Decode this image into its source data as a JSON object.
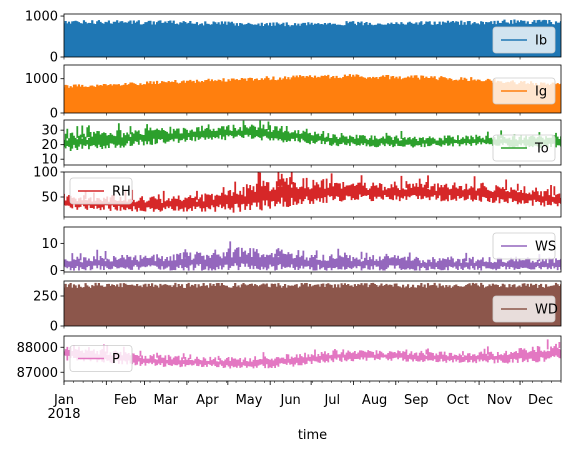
{
  "chart_data": {
    "type": "line",
    "xlabel": "time",
    "x_ticks": [
      "Jan",
      "Feb",
      "Mar",
      "Apr",
      "May",
      "Jun",
      "Jul",
      "Aug",
      "Sep",
      "Oct",
      "Nov",
      "Dec"
    ],
    "x_year_label": "2018",
    "x_range": [
      "2018-01-01",
      "2018-12-31"
    ],
    "legend_position": "right",
    "panels": [
      {
        "name": "Ib",
        "color": "#1f77b4",
        "ylim": [
          0,
          1050
        ],
        "yticks": [
          0,
          1000
        ],
        "fill": true,
        "legend_loc": "lower-right",
        "monthly_low": [
          0,
          0,
          0,
          0,
          0,
          0,
          0,
          0,
          0,
          0,
          0,
          0
        ],
        "monthly_high": [
          900,
          910,
          900,
          880,
          860,
          850,
          880,
          870,
          880,
          890,
          920,
          900
        ]
      },
      {
        "name": "Ig",
        "color": "#ff7f0e",
        "ylim": [
          0,
          1400
        ],
        "yticks": [
          0,
          1000
        ],
        "fill": true,
        "legend_loc": "right",
        "monthly_low": [
          0,
          0,
          0,
          0,
          0,
          0,
          0,
          0,
          0,
          0,
          0,
          0
        ],
        "monthly_high": [
          820,
          880,
          940,
          1000,
          1050,
          1100,
          1150,
          1120,
          1100,
          1050,
          950,
          880
        ]
      },
      {
        "name": "To",
        "color": "#2ca02c",
        "ylim": [
          6,
          37
        ],
        "yticks": [
          10,
          20,
          30
        ],
        "fill": false,
        "legend_loc": "lower-right",
        "monthly_low": [
          15,
          17,
          20,
          22,
          24,
          21,
          19,
          18,
          18,
          19,
          18,
          17
        ],
        "monthly_high": [
          28,
          30,
          32,
          33,
          34,
          33,
          28,
          27,
          26,
          27,
          27,
          28
        ]
      },
      {
        "name": "RH",
        "color": "#d62728",
        "ylim": [
          10,
          100
        ],
        "yticks": [
          50,
          100
        ],
        "fill": false,
        "legend_loc": "upper-left",
        "monthly_low": [
          25,
          22,
          20,
          20,
          18,
          30,
          40,
          42,
          40,
          40,
          35,
          28
        ],
        "monthly_high": [
          55,
          55,
          52,
          55,
          75,
          95,
          85,
          80,
          80,
          80,
          75,
          62
        ]
      },
      {
        "name": "WS",
        "color": "#9467bd",
        "ylim": [
          -0.5,
          16
        ],
        "yticks": [
          0,
          10
        ],
        "fill": false,
        "legend_loc": "upper-right",
        "monthly_low": [
          0,
          0,
          0,
          0,
          0,
          0,
          0,
          0,
          0,
          0,
          0,
          0
        ],
        "monthly_high": [
          5,
          6,
          6,
          7,
          9,
          7,
          6,
          6,
          5,
          5,
          5,
          5
        ]
      },
      {
        "name": "WD",
        "color": "#8c564b",
        "ylim": [
          0,
          375
        ],
        "yticks": [
          0,
          250
        ],
        "fill": true,
        "legend_loc": "lower-right",
        "monthly_low": [
          0,
          0,
          0,
          0,
          0,
          0,
          0,
          0,
          0,
          0,
          0,
          0
        ],
        "monthly_high": [
          360,
          360,
          360,
          360,
          360,
          360,
          360,
          360,
          360,
          360,
          360,
          360
        ]
      },
      {
        "name": "P",
        "color": "#e377c2",
        "ylim": [
          86650,
          88450
        ],
        "yticks": [
          87000,
          88000
        ],
        "fill": false,
        "legend_loc": "left",
        "monthly_low": [
          87450,
          87350,
          87200,
          87200,
          87100,
          87200,
          87400,
          87450,
          87400,
          87350,
          87350,
          87450
        ],
        "monthly_high": [
          88150,
          87900,
          87750,
          87650,
          87600,
          87750,
          87950,
          87900,
          87850,
          87800,
          87950,
          88200
        ]
      }
    ]
  }
}
